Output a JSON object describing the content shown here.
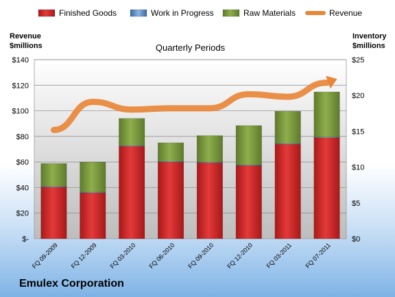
{
  "chart_data": {
    "type": "bar",
    "stacked": true,
    "title": "Quarterly Periods",
    "categories": [
      "FQ 09-2009",
      "FQ 12-2009",
      "FQ 03-2010",
      "FQ 06-2010",
      "FQ 09-2010",
      "FQ 12-2010",
      "FQ 03-2011",
      "FQ 07-2011"
    ],
    "series": [
      {
        "name": "Finished Goods",
        "color": "#cc2222",
        "axis": "right",
        "values": [
          7.2,
          6.4,
          12.9,
          10.7,
          10.6,
          10.2,
          13.2,
          14.1
        ]
      },
      {
        "name": "Work in Progress",
        "color": "#4f81bd",
        "axis": "right",
        "values": [
          0.1,
          0.1,
          0.1,
          0.1,
          0.1,
          0.1,
          0.1,
          0.1
        ]
      },
      {
        "name": "Raw Materials",
        "color": "#77933c",
        "axis": "right",
        "values": [
          3.2,
          4.2,
          3.8,
          2.6,
          3.7,
          5.5,
          4.5,
          6.3
        ]
      },
      {
        "name": "Revenue",
        "color": "#e8873a",
        "axis": "left",
        "type": "line",
        "values": [
          85,
          107,
          101,
          102,
          102,
          113,
          111,
          122
        ]
      }
    ],
    "y_left": {
      "label_line1": "Revenue",
      "label_line2": "$millions",
      "ylim": [
        0,
        140
      ],
      "ticks": [
        "$-",
        "$20",
        "$40",
        "$60",
        "$80",
        "$100",
        "$120",
        "$140"
      ]
    },
    "y_right": {
      "label_line1": "Inventory",
      "label_line2": "$millions",
      "ylim": [
        0,
        25
      ],
      "ticks": [
        "$0",
        "$5",
        "$10",
        "$15",
        "$20",
        "$25"
      ]
    },
    "grid": true,
    "legend_position": "top"
  },
  "footer": {
    "company": "Emulex Corporation"
  }
}
